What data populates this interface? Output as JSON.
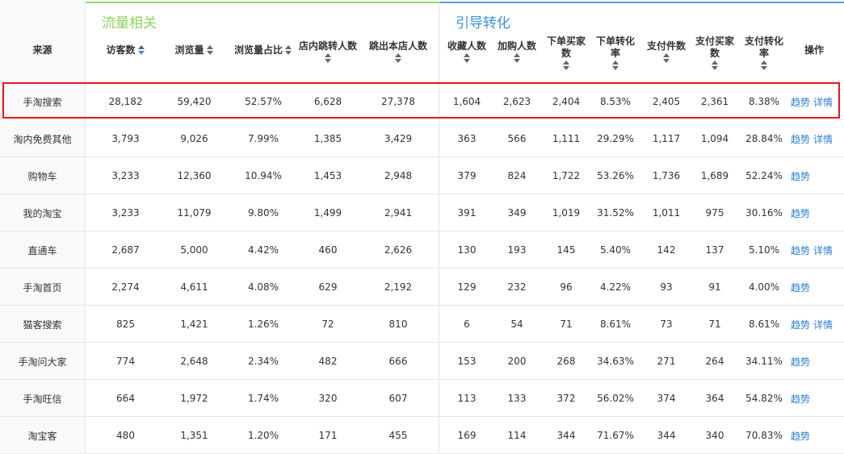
{
  "groups": [
    {
      "title": "流量相关",
      "bar_color": "#9ad56a",
      "title_color": "#8cd25a"
    },
    {
      "title": "引导转化",
      "bar_color": "#4e9ee8",
      "title_color": "#3b8fe0"
    }
  ],
  "headers": {
    "source": "来源",
    "visitors": "访客数",
    "pageviews": "浏览量",
    "pv_ratio": "浏览量占比",
    "store_jump": "店内跳转人数",
    "bounce": "跳出本店人数",
    "favorites": "收藏人数",
    "add_cart": "加购人数",
    "order_buyers": "下单买家数",
    "order_rate": "下单转化率",
    "pay_items": "支付件数",
    "pay_buyers": "支付买家数",
    "pay_rate": "支付转化率",
    "ops": "操作"
  },
  "actions": {
    "trend": "趋势",
    "detail": "详情"
  },
  "colors": {
    "link": "#2b7cd3",
    "highlight": "#e8161a",
    "sort_active": "#3a8ee6"
  },
  "rows": [
    {
      "source": "手淘搜索",
      "visitors": "28,182",
      "pageviews": "59,420",
      "pv_ratio": "52.57%",
      "store_jump": "6,628",
      "bounce": "27,378",
      "favorites": "1,604",
      "add_cart": "2,623",
      "order_buyers": "2,404",
      "order_rate": "8.53%",
      "pay_items": "2,405",
      "pay_buyers": "2,361",
      "pay_rate": "8.38%",
      "has_detail": true,
      "highlighted": true
    },
    {
      "source": "淘内免费其他",
      "visitors": "3,793",
      "pageviews": "9,026",
      "pv_ratio": "7.99%",
      "store_jump": "1,385",
      "bounce": "3,429",
      "favorites": "363",
      "add_cart": "566",
      "order_buyers": "1,111",
      "order_rate": "29.29%",
      "pay_items": "1,117",
      "pay_buyers": "1,094",
      "pay_rate": "28.84%",
      "has_detail": true
    },
    {
      "source": "购物车",
      "visitors": "3,233",
      "pageviews": "12,360",
      "pv_ratio": "10.94%",
      "store_jump": "1,453",
      "bounce": "2,948",
      "favorites": "379",
      "add_cart": "824",
      "order_buyers": "1,722",
      "order_rate": "53.26%",
      "pay_items": "1,736",
      "pay_buyers": "1,689",
      "pay_rate": "52.24%",
      "has_detail": false
    },
    {
      "source": "我的淘宝",
      "visitors": "3,233",
      "pageviews": "11,079",
      "pv_ratio": "9.80%",
      "store_jump": "1,499",
      "bounce": "2,941",
      "favorites": "391",
      "add_cart": "349",
      "order_buyers": "1,019",
      "order_rate": "31.52%",
      "pay_items": "1,011",
      "pay_buyers": "975",
      "pay_rate": "30.16%",
      "has_detail": false
    },
    {
      "source": "直通车",
      "visitors": "2,687",
      "pageviews": "5,000",
      "pv_ratio": "4.42%",
      "store_jump": "460",
      "bounce": "2,626",
      "favorites": "130",
      "add_cart": "193",
      "order_buyers": "145",
      "order_rate": "5.40%",
      "pay_items": "142",
      "pay_buyers": "137",
      "pay_rate": "5.10%",
      "has_detail": true
    },
    {
      "source": "手淘首页",
      "visitors": "2,274",
      "pageviews": "4,611",
      "pv_ratio": "4.08%",
      "store_jump": "629",
      "bounce": "2,192",
      "favorites": "129",
      "add_cart": "232",
      "order_buyers": "96",
      "order_rate": "4.22%",
      "pay_items": "93",
      "pay_buyers": "91",
      "pay_rate": "4.00%",
      "has_detail": false
    },
    {
      "source": "猫客搜索",
      "visitors": "825",
      "pageviews": "1,421",
      "pv_ratio": "1.26%",
      "store_jump": "72",
      "bounce": "810",
      "favorites": "6",
      "add_cart": "54",
      "order_buyers": "71",
      "order_rate": "8.61%",
      "pay_items": "73",
      "pay_buyers": "71",
      "pay_rate": "8.61%",
      "has_detail": true
    },
    {
      "source": "手淘问大家",
      "visitors": "774",
      "pageviews": "2,648",
      "pv_ratio": "2.34%",
      "store_jump": "482",
      "bounce": "666",
      "favorites": "153",
      "add_cart": "200",
      "order_buyers": "268",
      "order_rate": "34.63%",
      "pay_items": "271",
      "pay_buyers": "264",
      "pay_rate": "34.11%",
      "has_detail": false
    },
    {
      "source": "手淘旺信",
      "visitors": "664",
      "pageviews": "1,972",
      "pv_ratio": "1.74%",
      "store_jump": "320",
      "bounce": "607",
      "favorites": "113",
      "add_cart": "133",
      "order_buyers": "372",
      "order_rate": "56.02%",
      "pay_items": "374",
      "pay_buyers": "364",
      "pay_rate": "54.82%",
      "has_detail": false
    },
    {
      "source": "淘宝客",
      "visitors": "480",
      "pageviews": "1,351",
      "pv_ratio": "1.20%",
      "store_jump": "171",
      "bounce": "455",
      "favorites": "169",
      "add_cart": "114",
      "order_buyers": "344",
      "order_rate": "71.67%",
      "pay_items": "344",
      "pay_buyers": "340",
      "pay_rate": "70.83%",
      "has_detail": false
    }
  ]
}
